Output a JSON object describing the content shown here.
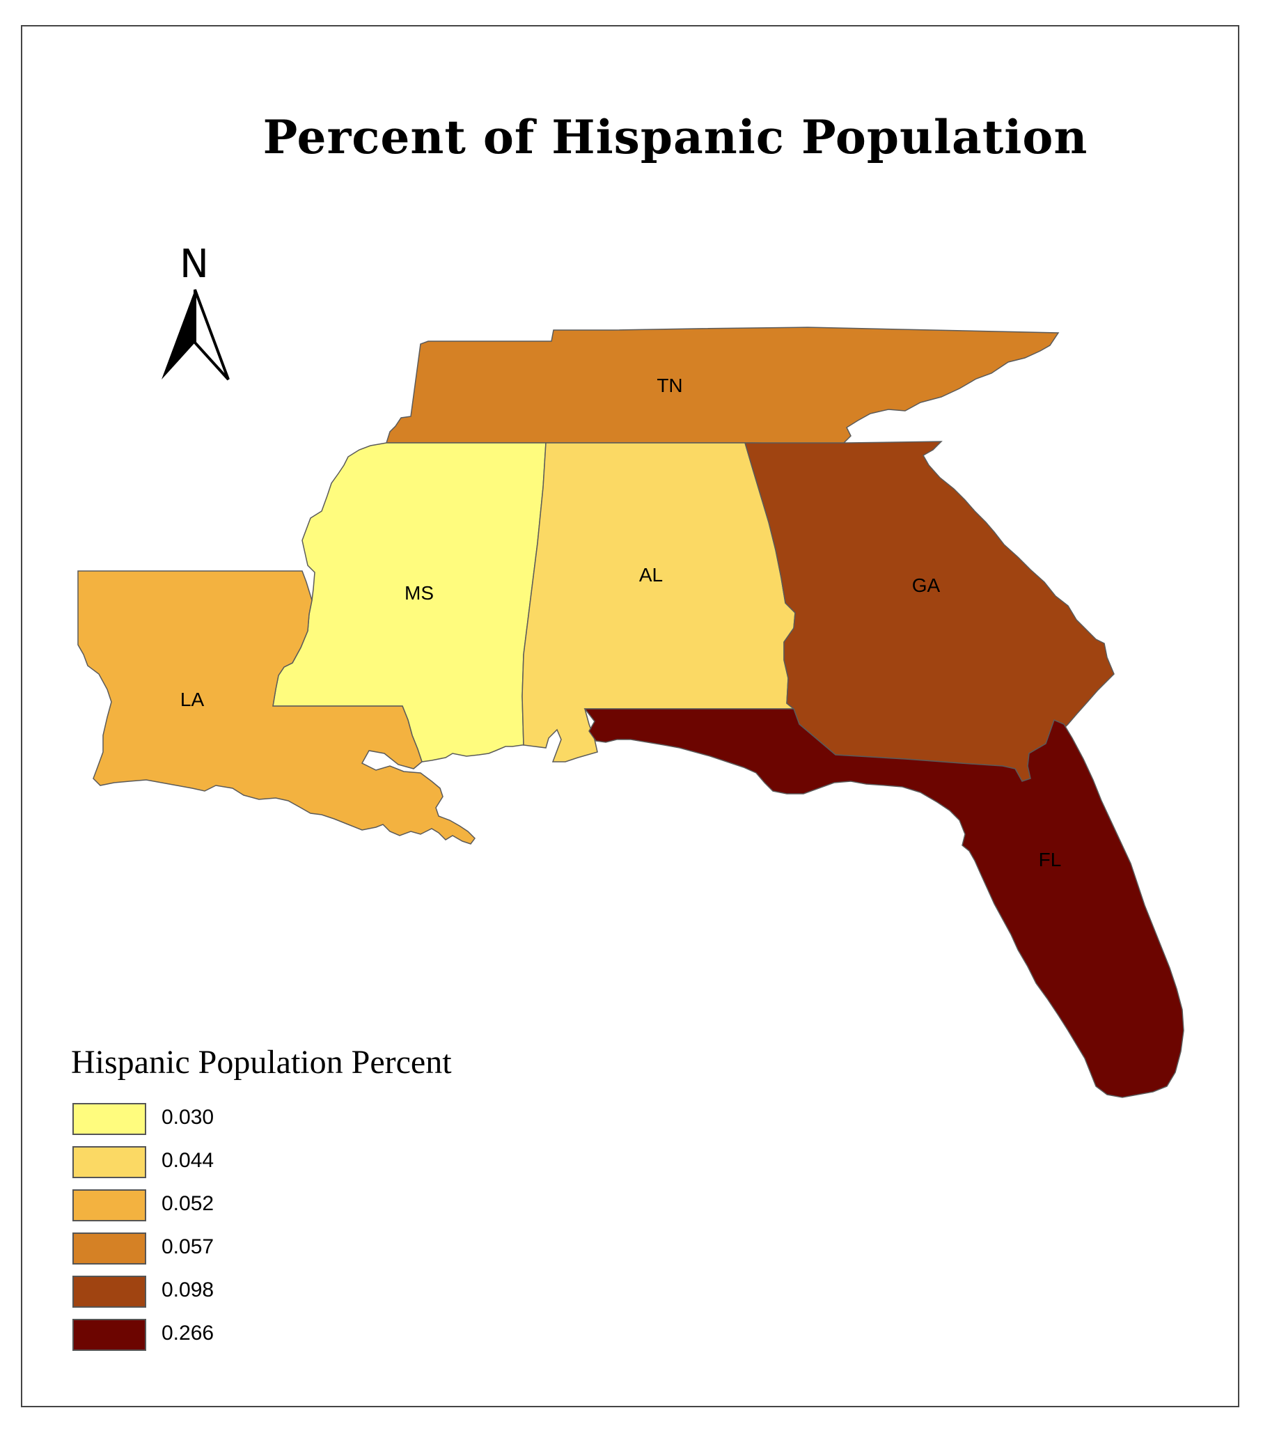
{
  "title": "Percent of Hispanic Population",
  "north_arrow": {
    "label": "N",
    "icon": "north-arrow-icon"
  },
  "legend": {
    "title": "Hispanic Population Percent",
    "items": [
      {
        "label": "0.030",
        "color": "#FFFC7E"
      },
      {
        "label": "0.044",
        "color": "#FBD964"
      },
      {
        "label": "0.052",
        "color": "#F3B240"
      },
      {
        "label": "0.057",
        "color": "#D58125"
      },
      {
        "label": "0.098",
        "color": "#A04411"
      },
      {
        "label": "0.266",
        "color": "#6C0500"
      }
    ]
  },
  "states": [
    {
      "code": "TN",
      "label": "TN",
      "value": 0.057,
      "color": "#D58125"
    },
    {
      "code": "MS",
      "label": "MS",
      "value": 0.03,
      "color": "#FFFC7E"
    },
    {
      "code": "AL",
      "label": "AL",
      "value": 0.044,
      "color": "#FBD964"
    },
    {
      "code": "GA",
      "label": "GA",
      "value": 0.098,
      "color": "#A04411"
    },
    {
      "code": "LA",
      "label": "LA",
      "value": 0.052,
      "color": "#F3B240"
    },
    {
      "code": "FL",
      "label": "FL",
      "value": 0.266,
      "color": "#6C0500"
    }
  ]
}
